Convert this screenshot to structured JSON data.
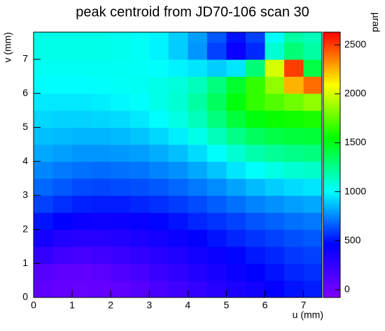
{
  "chart_data": {
    "type": "heatmap",
    "title": "peak centroid from JD70-106 scan 30",
    "x_label": "u (mm)",
    "y_label": "v (mm)",
    "z_label": "µrad",
    "x": [
      0.25,
      0.75,
      1.25,
      1.75,
      2.25,
      2.75,
      3.25,
      3.75,
      4.25,
      4.75,
      5.25,
      5.75,
      6.25,
      6.75,
      7.25
    ],
    "y": [
      0.25,
      0.75,
      1.25,
      1.75,
      2.25,
      2.75,
      3.25,
      3.75,
      4.25,
      4.75,
      5.25,
      5.75,
      6.25,
      6.75,
      7.25,
      7.75
    ],
    "values": [
      [
        60,
        40,
        30,
        40,
        60,
        100,
        150,
        200,
        250,
        300,
        350,
        400,
        450,
        500,
        520
      ],
      [
        100,
        60,
        60,
        80,
        120,
        170,
        220,
        270,
        320,
        370,
        420,
        460,
        500,
        540,
        560
      ],
      [
        250,
        200,
        180,
        190,
        220,
        260,
        300,
        340,
        390,
        430,
        470,
        510,
        540,
        580,
        600
      ],
      [
        380,
        330,
        300,
        300,
        320,
        350,
        380,
        420,
        460,
        500,
        540,
        570,
        600,
        630,
        650
      ],
      [
        500,
        460,
        420,
        410,
        420,
        440,
        470,
        500,
        540,
        570,
        600,
        640,
        670,
        700,
        720
      ],
      [
        600,
        560,
        530,
        520,
        520,
        540,
        560,
        590,
        620,
        660,
        700,
        740,
        770,
        800,
        820
      ],
      [
        680,
        650,
        620,
        610,
        620,
        630,
        650,
        680,
        720,
        760,
        810,
        860,
        900,
        930,
        950
      ],
      [
        750,
        720,
        700,
        690,
        700,
        710,
        740,
        770,
        820,
        880,
        950,
        1010,
        1060,
        1100,
        1120
      ],
      [
        820,
        800,
        780,
        780,
        790,
        800,
        830,
        870,
        930,
        1010,
        1100,
        1180,
        1230,
        1260,
        1280
      ],
      [
        870,
        860,
        850,
        850,
        860,
        880,
        920,
        970,
        1050,
        1150,
        1260,
        1350,
        1400,
        1420,
        1430
      ],
      [
        920,
        910,
        910,
        920,
        930,
        960,
        1000,
        1060,
        1150,
        1280,
        1420,
        1520,
        1560,
        1580,
        1600
      ],
      [
        960,
        960,
        960,
        970,
        990,
        1010,
        1050,
        1100,
        1200,
        1350,
        1520,
        1650,
        1720,
        1780,
        1850
      ],
      [
        1000,
        1000,
        1000,
        1010,
        1020,
        1030,
        1050,
        1080,
        1150,
        1280,
        1450,
        1650,
        1850,
        2250,
        2400
      ],
      [
        1030,
        1030,
        1030,
        1030,
        1030,
        1020,
        1010,
        980,
        950,
        900,
        950,
        1300,
        2000,
        2500,
        1400
      ],
      [
        1050,
        1050,
        1050,
        1050,
        1040,
        1020,
        980,
        900,
        780,
        600,
        420,
        550,
        1100,
        1300,
        1200
      ],
      [
        1050,
        1050,
        1050,
        1050,
        1040,
        1020,
        980,
        900,
        800,
        650,
        500,
        600,
        1000,
        1200,
        1150
      ]
    ],
    "palette": [
      "#8000ff",
      "#0000ff",
      "#00ffff",
      "#00ff00",
      "#ffff00",
      "#ff0000"
    ],
    "xlim": [
      0,
      7.48
    ],
    "ylim": [
      0,
      7.8
    ],
    "zlim": [
      -80,
      2630
    ],
    "xticks": [
      0,
      1,
      2,
      3,
      4,
      5,
      6,
      7
    ],
    "yticks": [
      0,
      1,
      2,
      3,
      4,
      5,
      6,
      7
    ],
    "zticks": [
      0,
      500,
      1000,
      1500,
      2000,
      2500
    ]
  }
}
